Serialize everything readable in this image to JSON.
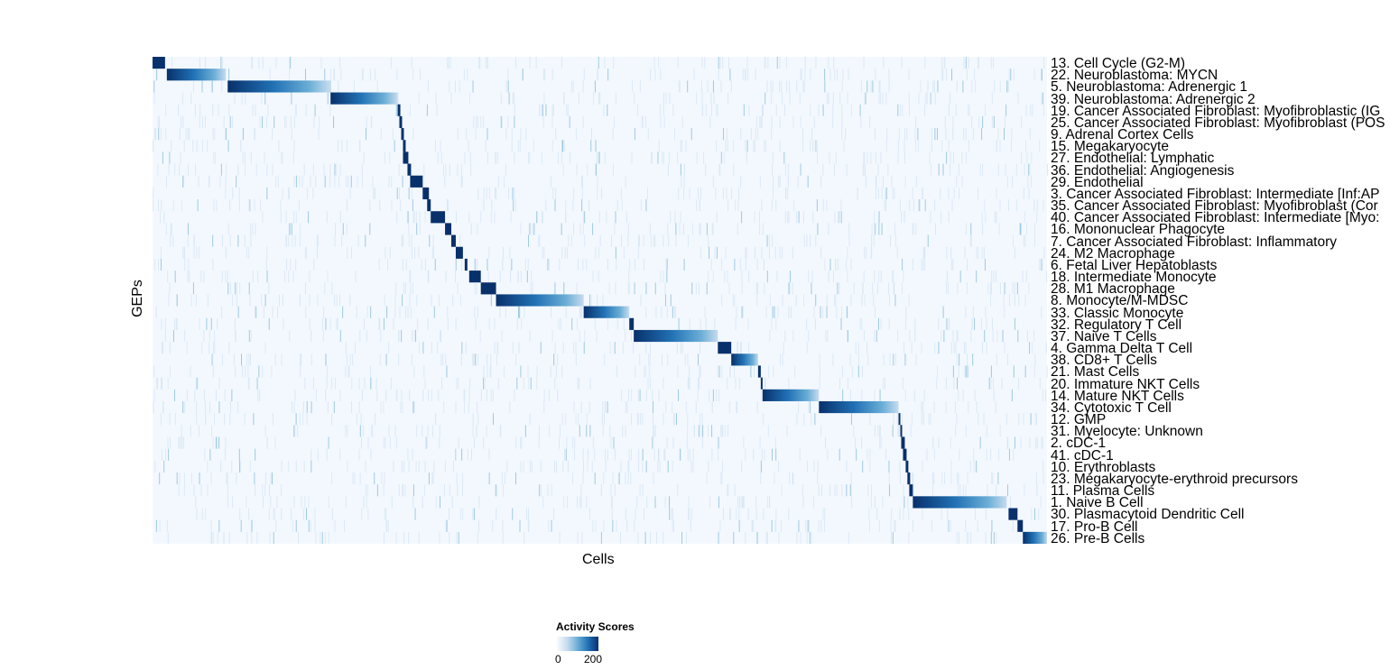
{
  "chart_data": {
    "type": "heatmap",
    "xlabel": "Cells",
    "ylabel": "GEPs",
    "legend": {
      "title": "Activity Scores",
      "ticks": [
        0,
        200
      ],
      "colors": [
        "#f7fbff",
        "#c6dbef",
        "#6baed6",
        "#2171b5",
        "#08306b"
      ],
      "placement": "bottom"
    },
    "rows": [
      {
        "label": "13. Cell Cycle (G2-M)",
        "active_cells_frac": [
          0.0,
          0.014
        ]
      },
      {
        "label": "22. Neuroblastoma: MYCN",
        "active_cells_frac": [
          0.016,
          0.082
        ]
      },
      {
        "label": "5. Neuroblastoma: Adrenergic 1",
        "active_cells_frac": [
          0.084,
          0.198
        ]
      },
      {
        "label": "39. Neuroblastoma: Adrenergic 2",
        "active_cells_frac": [
          0.199,
          0.274
        ]
      },
      {
        "label": "19. Cancer Associated Fibroblast: Myofibroblastic (IG",
        "active_cells_frac": [
          0.274,
          0.277
        ]
      },
      {
        "label": "25. Cancer Associated Fibroblast: Myofibroblast (POS",
        "active_cells_frac": [
          0.276,
          0.279
        ]
      },
      {
        "label": "9. Adrenal Cortex Cells",
        "active_cells_frac": [
          0.278,
          0.281
        ]
      },
      {
        "label": "15. Megakaryocyte",
        "active_cells_frac": [
          0.28,
          0.283
        ]
      },
      {
        "label": "27. Endothelial: Lymphatic",
        "active_cells_frac": [
          0.28,
          0.286
        ]
      },
      {
        "label": "36. Endothelial: Angiogenesis",
        "active_cells_frac": [
          0.285,
          0.289
        ]
      },
      {
        "label": "29. Endothelial",
        "active_cells_frac": [
          0.288,
          0.302
        ]
      },
      {
        "label": "3. Cancer Associated Fibroblast: Intermediate [Inf:AP",
        "active_cells_frac": [
          0.302,
          0.309
        ]
      },
      {
        "label": "35. Cancer Associated Fibroblast: Myofibroblast (Cor",
        "active_cells_frac": [
          0.307,
          0.311
        ]
      },
      {
        "label": "40. Cancer Associated Fibroblast: Intermediate [Myo:",
        "active_cells_frac": [
          0.311,
          0.327
        ]
      },
      {
        "label": "16. Mononuclear Phagocyte",
        "active_cells_frac": [
          0.327,
          0.334
        ]
      },
      {
        "label": "7. Cancer Associated Fibroblast: Inflammatory",
        "active_cells_frac": [
          0.334,
          0.339
        ]
      },
      {
        "label": "24. M2 Macrophage",
        "active_cells_frac": [
          0.339,
          0.347
        ]
      },
      {
        "label": "6. Fetal Liver Hepatoblasts",
        "active_cells_frac": [
          0.349,
          0.352
        ]
      },
      {
        "label": "18. Intermediate Monocyte",
        "active_cells_frac": [
          0.354,
          0.367
        ]
      },
      {
        "label": "28. M1 Macrophage",
        "active_cells_frac": [
          0.367,
          0.384
        ]
      },
      {
        "label": "8. Monocyte/M-MDSC",
        "active_cells_frac": [
          0.384,
          0.482
        ]
      },
      {
        "label": "33. Classic Monocyte",
        "active_cells_frac": [
          0.482,
          0.533
        ]
      },
      {
        "label": "32. Regulatory T Cell",
        "active_cells_frac": [
          0.533,
          0.538
        ]
      },
      {
        "label": "37. Naive T Cells",
        "active_cells_frac": [
          0.538,
          0.632
        ]
      },
      {
        "label": "4. Gamma Delta T Cell",
        "active_cells_frac": [
          0.632,
          0.647
        ]
      },
      {
        "label": "38. CD8+ T Cells",
        "active_cells_frac": [
          0.647,
          0.677
        ]
      },
      {
        "label": "21. Mast Cells",
        "active_cells_frac": [
          0.677,
          0.68
        ]
      },
      {
        "label": "20. Immature NKT Cells",
        "active_cells_frac": [
          0.68,
          0.682
        ]
      },
      {
        "label": "14. Mature NKT Cells",
        "active_cells_frac": [
          0.682,
          0.745
        ]
      },
      {
        "label": "34. Cytotoxic T Cell",
        "active_cells_frac": [
          0.745,
          0.834
        ]
      },
      {
        "label": "12. GMP",
        "active_cells_frac": [
          0.834,
          0.836
        ]
      },
      {
        "label": "31. Myelocyte: Unknown",
        "active_cells_frac": [
          0.836,
          0.838
        ]
      },
      {
        "label": "2. cDC-1",
        "active_cells_frac": [
          0.837,
          0.841
        ]
      },
      {
        "label": "41. cDC-1",
        "active_cells_frac": [
          0.839,
          0.843
        ]
      },
      {
        "label": "10. Erythroblasts",
        "active_cells_frac": [
          0.842,
          0.845
        ]
      },
      {
        "label": "23. Megakaryocyte-erythroid precursors",
        "active_cells_frac": [
          0.844,
          0.847
        ]
      },
      {
        "label": "11. Plasma Cells",
        "active_cells_frac": [
          0.846,
          0.85
        ]
      },
      {
        "label": "1. Naive B Cell",
        "active_cells_frac": [
          0.85,
          0.955
        ]
      },
      {
        "label": "30. Plasmacytoid Dendritic Cell",
        "active_cells_frac": [
          0.957,
          0.967
        ]
      },
      {
        "label": "17. Pro-B Cell",
        "active_cells_frac": [
          0.967,
          0.973
        ]
      },
      {
        "label": "26. Pre-B Cells",
        "active_cells_frac": [
          0.973,
          1.0
        ]
      }
    ]
  }
}
